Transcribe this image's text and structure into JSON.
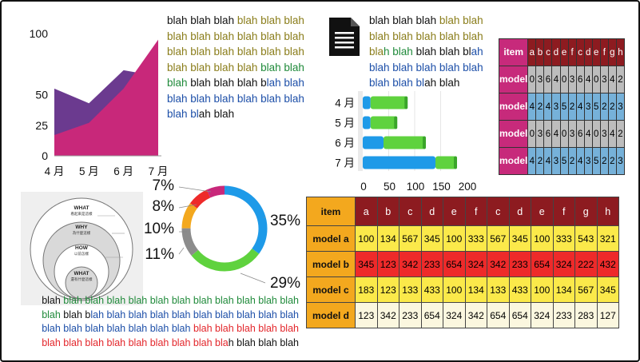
{
  "area_chart": {
    "y_ticks": [
      "100",
      "50",
      "25",
      "0"
    ],
    "x_ticks": [
      "4 月",
      "5 月",
      "6 月",
      "7 月"
    ],
    "colors": {
      "back": "#6b3a8f",
      "front": "#c8287a",
      "axis": "#999999"
    },
    "chart_data": {
      "type": "area",
      "categories": [
        "4 月",
        "5 月",
        "6 月",
        "7 月"
      ],
      "series": [
        {
          "values": [
            55,
            43,
            70,
            65
          ]
        },
        {
          "values": [
            17,
            27,
            55,
            95
          ]
        }
      ],
      "ylim": [
        0,
        100
      ]
    }
  },
  "text_block_1": [
    {
      "color": "black",
      "text": "blah blah blah "
    },
    {
      "color": "olive",
      "text": "blah blah blah blah blah blah blah blah blah blah blah blah blah blah blah blah blah blah blah "
    },
    {
      "color": "green",
      "text": "blah blah blah "
    },
    {
      "color": "black",
      "text": "blah blah blah b"
    },
    {
      "color": "blue",
      "text": "lah blah blah blah blah blah "
    },
    {
      "color": "blue",
      "text": "blah blah blah bl"
    },
    {
      "color": "black",
      "text": "ah blah"
    }
  ],
  "document_icon": "document-icon",
  "text_block_2": [
    {
      "color": "black",
      "text": "blah blah blah "
    },
    {
      "color": "olive",
      "text": "blah blah blah blah blah blah blah bla"
    },
    {
      "color": "green",
      "text": "h blah "
    },
    {
      "color": "black",
      "text": "blah blah bl"
    },
    {
      "color": "blue",
      "text": "ah blah blah blah blah blah blah blah bl"
    },
    {
      "color": "black",
      "text": "ah blah"
    }
  ],
  "bar_chart": {
    "y_ticks": [
      "4 月",
      "5 月",
      "6 月",
      "7 月"
    ],
    "x_ticks": [
      "0",
      "50",
      "100",
      "150",
      "200"
    ],
    "colors": {
      "blue": "#1e9ae8",
      "green": "#5fd23e"
    },
    "chart_data": {
      "type": "bar",
      "orientation": "horizontal",
      "stacked": true,
      "categories": [
        "4 月",
        "5 月",
        "6 月",
        "7 月"
      ],
      "series": [
        {
          "values": [
            15,
            15,
            40,
            140
          ]
        },
        {
          "values": [
            70,
            50,
            80,
            40
          ]
        }
      ],
      "xlim": [
        0,
        200
      ]
    }
  },
  "small_table": {
    "corner": "item",
    "headers": [
      "a",
      "b",
      "c",
      "d",
      "e",
      "f",
      "c",
      "d",
      "e",
      "f",
      "g",
      "h"
    ],
    "rows": [
      {
        "label": "model",
        "style": "g",
        "values": [
          "0",
          "3",
          "6",
          "4",
          "0",
          "3",
          "6",
          "4",
          "0",
          "3",
          "4",
          "2"
        ]
      },
      {
        "label": "model",
        "style": "b",
        "values": [
          "4",
          "2",
          "4",
          "3",
          "5",
          "2",
          "4",
          "3",
          "5",
          "2",
          "2",
          "3"
        ]
      },
      {
        "label": "model",
        "style": "g",
        "values": [
          "0",
          "3",
          "6",
          "4",
          "0",
          "3",
          "6",
          "4",
          "0",
          "3",
          "4",
          "2"
        ]
      },
      {
        "label": "model",
        "style": "b",
        "values": [
          "4",
          "2",
          "4",
          "3",
          "5",
          "2",
          "4",
          "3",
          "5",
          "2",
          "2",
          "3"
        ]
      }
    ]
  },
  "circles_diagram": {
    "levels": [
      {
        "title": "WHAT",
        "subtitle": "看起來是這樣"
      },
      {
        "title": "WHY",
        "subtitle": "為什麼這樣"
      },
      {
        "title": "HOW",
        "subtitle": "以前怎樣"
      },
      {
        "title": "WHAT",
        "subtitle": "還有什麼這樣"
      }
    ]
  },
  "donut_chart": {
    "labels": [
      "35%",
      "29%",
      "11%",
      "10%",
      "8%",
      "7%"
    ],
    "chart_data": {
      "type": "pie",
      "donut": true,
      "values": [
        35,
        29,
        11,
        10,
        8,
        7
      ],
      "colors": [
        "#1e9ae8",
        "#5fd23e",
        "#8c8c8c",
        "#f3a81e",
        "#ee2a2a",
        "#c8287a"
      ]
    }
  },
  "text_block_3": [
    {
      "color": "black",
      "text": "blah "
    },
    {
      "color": "green",
      "text": "blah blah blah blah blah blah blah blah blah blah blah blah "
    },
    {
      "color": "black",
      "text": "blah b"
    },
    {
      "color": "blue",
      "text": "lah blah blah blah blah blah blah blah blah blah blah blah blah blah blah blah blah "
    },
    {
      "color": "red",
      "text": "blah blah blah blah blah blah blah blah blah blah blah blah blah bla"
    },
    {
      "color": "black",
      "text": "h blah blah blah"
    }
  ],
  "big_table": {
    "corner": "item",
    "headers": [
      "a",
      "b",
      "c",
      "d",
      "e",
      "f",
      "c",
      "d",
      "e",
      "f",
      "g",
      "h"
    ],
    "rows": [
      {
        "label": "model a",
        "style": "r-yellow",
        "values": [
          "100",
          "134",
          "567",
          "345",
          "100",
          "333",
          "567",
          "345",
          "100",
          "333",
          "543",
          "321"
        ]
      },
      {
        "label": "model b",
        "style": "r-red",
        "values": [
          "345",
          "123",
          "342",
          "233",
          "654",
          "324",
          "342",
          "233",
          "654",
          "324",
          "222",
          "432"
        ]
      },
      {
        "label": "model c",
        "style": "r-yellow",
        "values": [
          "183",
          "123",
          "133",
          "433",
          "100",
          "134",
          "133",
          "433",
          "100",
          "134",
          "567",
          "345"
        ]
      },
      {
        "label": "model d",
        "style": "r-cream",
        "values": [
          "123",
          "342",
          "233",
          "654",
          "324",
          "342",
          "654",
          "654",
          "324",
          "233",
          "283",
          "127"
        ]
      }
    ]
  }
}
